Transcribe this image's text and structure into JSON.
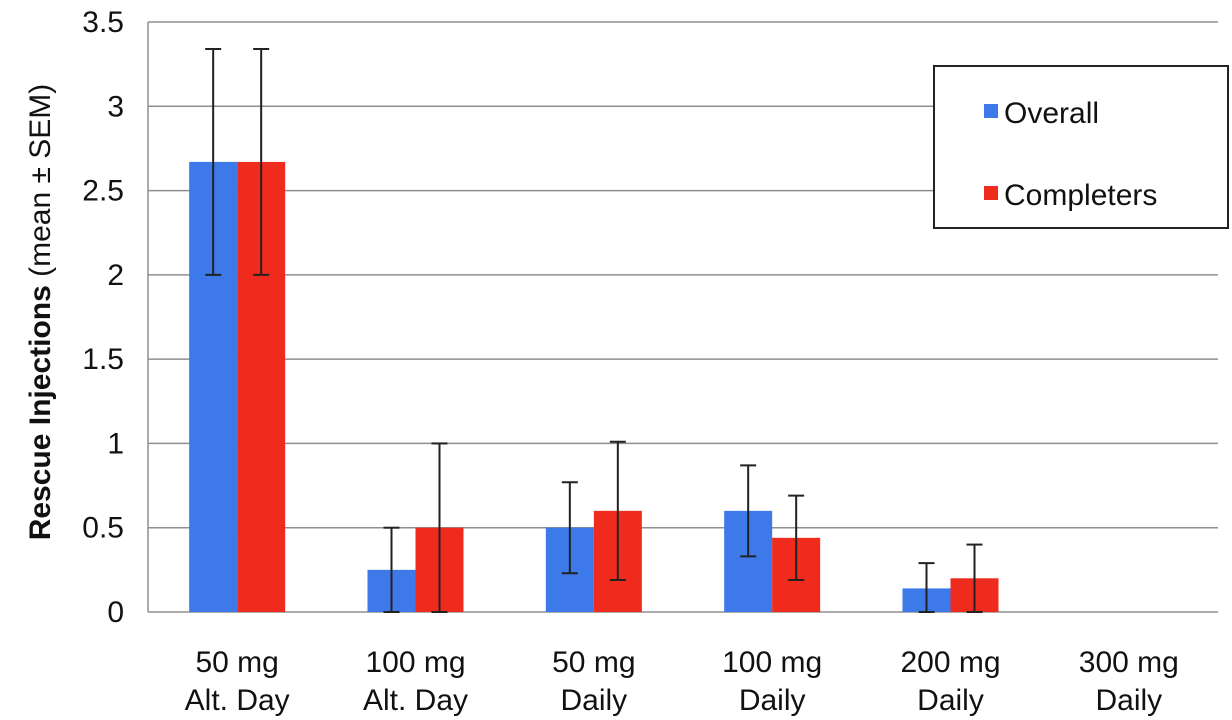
{
  "chart_data": {
    "type": "bar",
    "ylabel": "Rescue Injections",
    "ylabel_suffix": " (mean ± SEM)",
    "xlabel": "",
    "ylim": [
      0,
      3.5
    ],
    "yticks": [
      "0",
      "0.5",
      "1",
      "1.5",
      "2",
      "2.5",
      "3",
      "3.5"
    ],
    "grid": true,
    "legend_position": "top-right",
    "categories": [
      [
        "50 mg",
        "Alt. Day"
      ],
      [
        "100 mg",
        "Alt. Day"
      ],
      [
        "50 mg",
        "Daily"
      ],
      [
        "100 mg",
        "Daily"
      ],
      [
        "200 mg",
        "Daily"
      ],
      [
        "300 mg",
        "Daily"
      ]
    ],
    "series": [
      {
        "name": "Overall",
        "color": "#3d79e8",
        "values": [
          2.67,
          0.25,
          0.5,
          0.6,
          0.14,
          0
        ],
        "error": [
          0.67,
          0.25,
          0.27,
          0.27,
          0.15,
          0
        ]
      },
      {
        "name": "Completers",
        "color": "#ee2b1c",
        "values": [
          2.67,
          0.5,
          0.6,
          0.44,
          0.2,
          0
        ],
        "error": [
          0.67,
          0.5,
          0.41,
          0.25,
          0.2,
          0
        ]
      }
    ]
  }
}
